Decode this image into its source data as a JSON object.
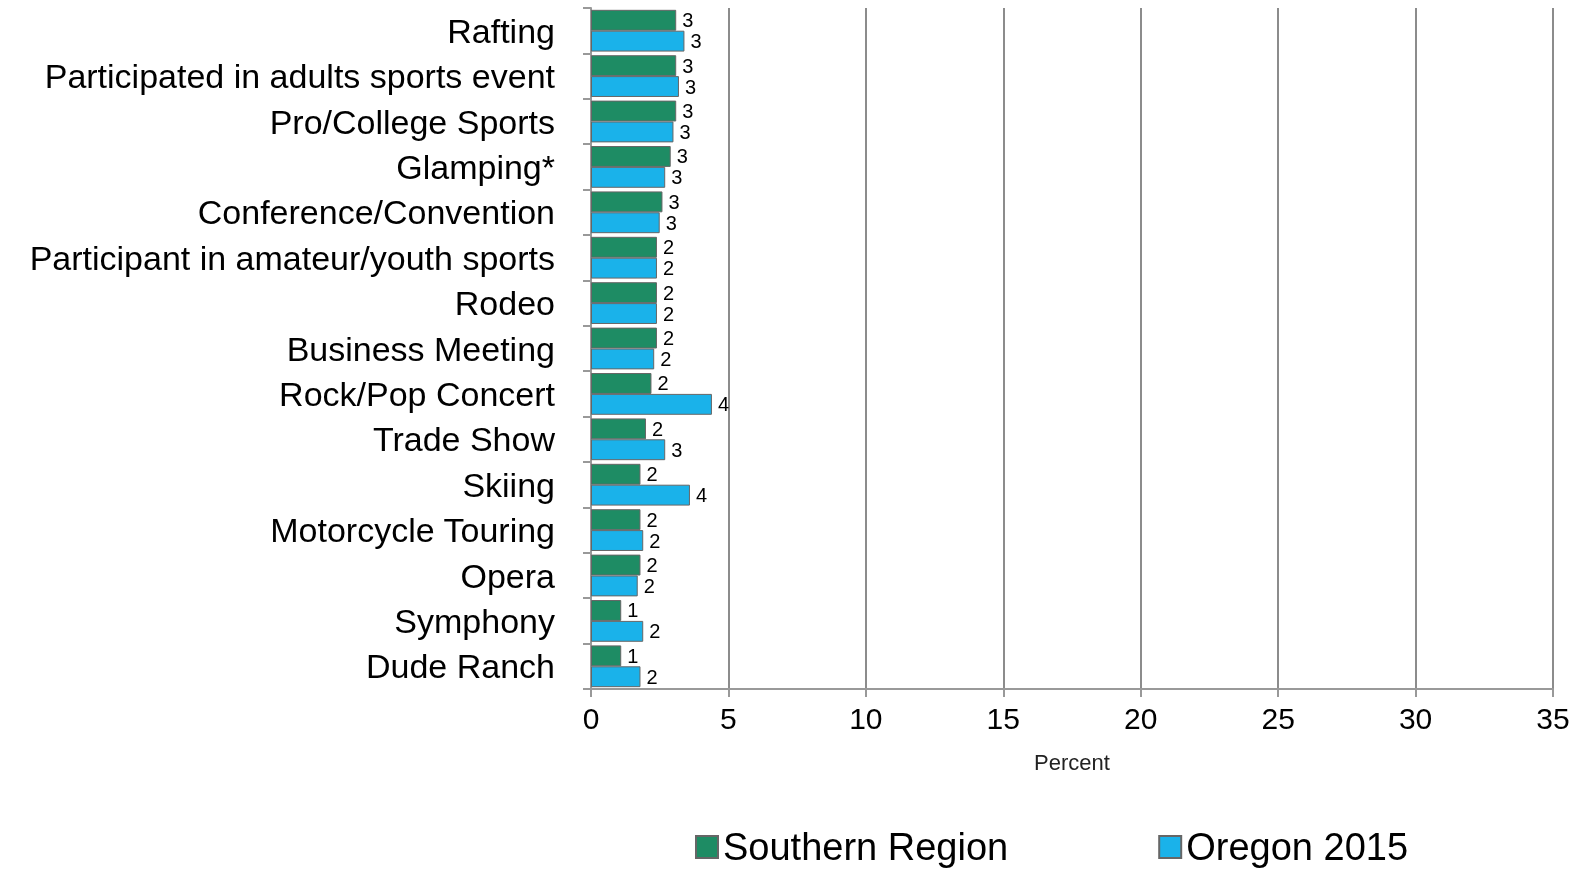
{
  "chart_data": {
    "type": "bar",
    "orientation": "horizontal",
    "xlabel": "Percent",
    "categories": [
      "Rafting",
      "Participated in adults sports event",
      "Pro/College Sports",
      "Glamping*",
      "Conference/Convention",
      "Participant in amateur/youth sports",
      "Rodeo",
      "Business Meeting",
      "Rock/Pop Concert",
      "Trade Show",
      "Skiing",
      "Motorcycle Touring",
      "Opera",
      "Symphony",
      "Dude Ranch"
    ],
    "series": [
      {
        "name": "Southern Region",
        "color": "#1e8c64",
        "values": [
          3.1,
          3.1,
          3.1,
          2.9,
          2.6,
          2.4,
          2.4,
          2.4,
          2.2,
          2.0,
          1.8,
          1.8,
          1.8,
          1.1,
          1.1
        ],
        "value_labels": [
          "3",
          "3",
          "3",
          "3",
          "3",
          "2",
          "2",
          "2",
          "2",
          "2",
          "2",
          "2",
          "2",
          "1",
          "1"
        ]
      },
      {
        "name": "Oregon 2015",
        "color": "#1ab2ea",
        "values": [
          3.4,
          3.2,
          3.0,
          2.7,
          2.5,
          2.4,
          2.4,
          2.3,
          4.4,
          2.7,
          3.6,
          1.9,
          1.7,
          1.9,
          1.8
        ],
        "value_labels": [
          "3",
          "3",
          "3",
          "3",
          "3",
          "2",
          "2",
          "2",
          "4",
          "3",
          "4",
          "2",
          "2",
          "2",
          "2"
        ]
      }
    ],
    "xlim": [
      0,
      35
    ],
    "xticks": [
      0,
      5,
      10,
      15,
      20,
      25,
      30,
      35
    ],
    "grid": "x",
    "legend": "bottom"
  }
}
